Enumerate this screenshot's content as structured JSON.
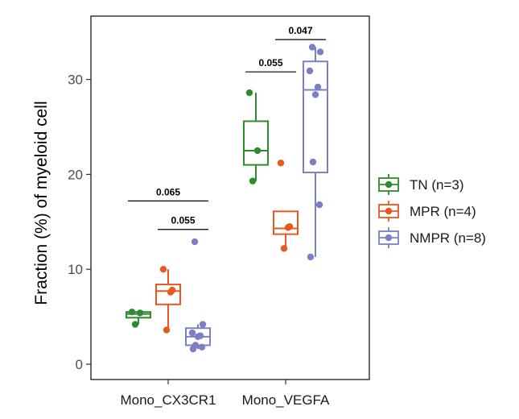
{
  "chart_data": {
    "type": "boxplot",
    "title": "",
    "xlabel": "",
    "ylabel": "Fraction (%) of myeloid cell",
    "ylim": [
      -1.5,
      36
    ],
    "yticks": [
      0,
      10,
      20,
      30
    ],
    "grid": false,
    "legend_position": "right",
    "categories": [
      "Mono_CX3CR1",
      "Mono_VEGFA"
    ],
    "series": [
      {
        "name": "TN (n=3)",
        "color": "#2e8b2e",
        "boxes": [
          {
            "category": "Mono_CX3CR1",
            "q1": 4.9,
            "median": 5.3,
            "q3": 5.5,
            "whisker_low": 4.2,
            "whisker_high": 5.5,
            "points": [
              5.5,
              5.4,
              4.2
            ]
          },
          {
            "category": "Mono_VEGFA",
            "q1": 21.0,
            "median": 22.5,
            "q3": 25.6,
            "whisker_low": 19.3,
            "whisker_high": 28.6,
            "points": [
              28.6,
              22.5,
              19.3
            ]
          }
        ]
      },
      {
        "name": "MPR (n=4)",
        "color": "#e8581f",
        "boxes": [
          {
            "category": "Mono_CX3CR1",
            "q1": 6.3,
            "median": 7.7,
            "q3": 8.4,
            "whisker_low": 3.6,
            "whisker_high": 10.0,
            "points": [
              10.0,
              7.8,
              7.6,
              3.6
            ]
          },
          {
            "category": "Mono_VEGFA",
            "q1": 13.7,
            "median": 14.3,
            "q3": 16.1,
            "whisker_low": 12.2,
            "whisker_high": 16.1,
            "points": [
              21.2,
              14.5,
              14.4,
              12.2
            ]
          }
        ]
      },
      {
        "name": "NMPR (n=8)",
        "color": "#7b7fc4",
        "boxes": [
          {
            "category": "Mono_CX3CR1",
            "q1": 2.0,
            "median": 2.9,
            "q3": 3.8,
            "whisker_low": 1.6,
            "whisker_high": 4.2,
            "points": [
              12.9,
              4.2,
              3.3,
              3.0,
              2.9,
              2.0,
              1.8,
              1.6
            ]
          },
          {
            "category": "Mono_VEGFA",
            "q1": 20.2,
            "median": 28.9,
            "q3": 31.9,
            "whisker_low": 11.3,
            "whisker_high": 33.4,
            "points": [
              33.4,
              32.9,
              30.9,
              29.2,
              28.4,
              21.3,
              16.8,
              11.3
            ]
          }
        ]
      }
    ],
    "annotations": [
      {
        "category": "Mono_CX3CR1",
        "from": "TN (n=3)",
        "to": "NMPR (n=8)",
        "y": 17.2,
        "label": "0.065"
      },
      {
        "category": "Mono_CX3CR1",
        "from": "MPR (n=4)",
        "to": "NMPR (n=8)",
        "y": 14.2,
        "label": "0.055"
      },
      {
        "category": "Mono_VEGFA",
        "from": "TN (n=3)",
        "to": "MPR (n=4)",
        "y": 30.8,
        "label": "0.055"
      },
      {
        "category": "Mono_VEGFA",
        "from": "MPR (n=4)",
        "to": "NMPR (n=8)",
        "y": 34.2,
        "label": "0.047"
      }
    ]
  }
}
